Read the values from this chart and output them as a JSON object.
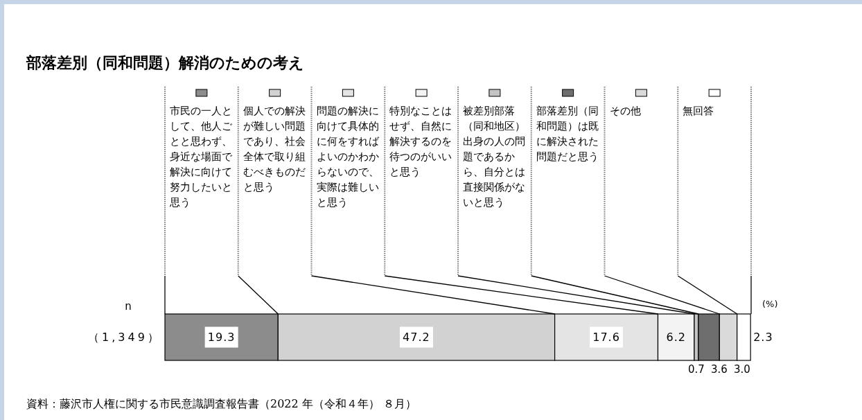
{
  "chart_data": {
    "type": "bar",
    "orientation": "horizontal",
    "stacked": true,
    "title": "部落差別（同和問題）解消のための考え",
    "ylabel": "n",
    "categories": [
      "（1,349）"
    ],
    "xlim": [
      0,
      100
    ],
    "tick_labels": "y",
    "legend": "top",
    "data_labels": true,
    "series": [
      {
        "name": "市民の一人として、他人ごとと思わず、身近な場面で解決に向けて努力したいと思う",
        "color": "#8c8c8c",
        "values": [
          19.3
        ],
        "value_labels": [
          "19.3"
        ]
      },
      {
        "name": "個人での解決が難しい問題であり、社会全体で取り組むべきものだと思う",
        "color": "#d2d2d2",
        "values": [
          47.2
        ],
        "value_labels": [
          "47.2"
        ]
      },
      {
        "name": "問題の解決に向けて具体的に何をすればよいのかわからないので、実際は難しいと思う",
        "color": "#e4e4e4",
        "values": [
          17.6
        ],
        "value_labels": [
          "17.6"
        ]
      },
      {
        "name": "特別なことはせず、自然に解決するのを待つのがいいと思う",
        "color": "#f3f3f3",
        "values": [
          6.2
        ],
        "value_labels": [
          "6.2"
        ]
      },
      {
        "name": "被差別部落（同和地区）出身の人の問題であるから、自分とは直接関係がないと思う",
        "color": "#c4c4c4",
        "values": [
          0.7
        ],
        "value_labels": [
          "0.7"
        ]
      },
      {
        "name": "部落差別（同和問題）は既に解決された問題だと思う",
        "color": "#6e6e6e",
        "values": [
          3.6
        ],
        "value_labels": [
          "3.6"
        ]
      },
      {
        "name": "その他",
        "color": "#dadada",
        "values": [
          3.0
        ],
        "value_labels": [
          "3.0"
        ]
      },
      {
        "name": "無回答",
        "color": "#ffffff",
        "values": [
          2.3
        ],
        "value_labels": [
          "2.3"
        ]
      }
    ],
    "annotations": [
      "(%)",
      "資料：藤沢市人権に関する市民意識調査報告書（2022 年（令和４年） ８月）"
    ]
  }
}
